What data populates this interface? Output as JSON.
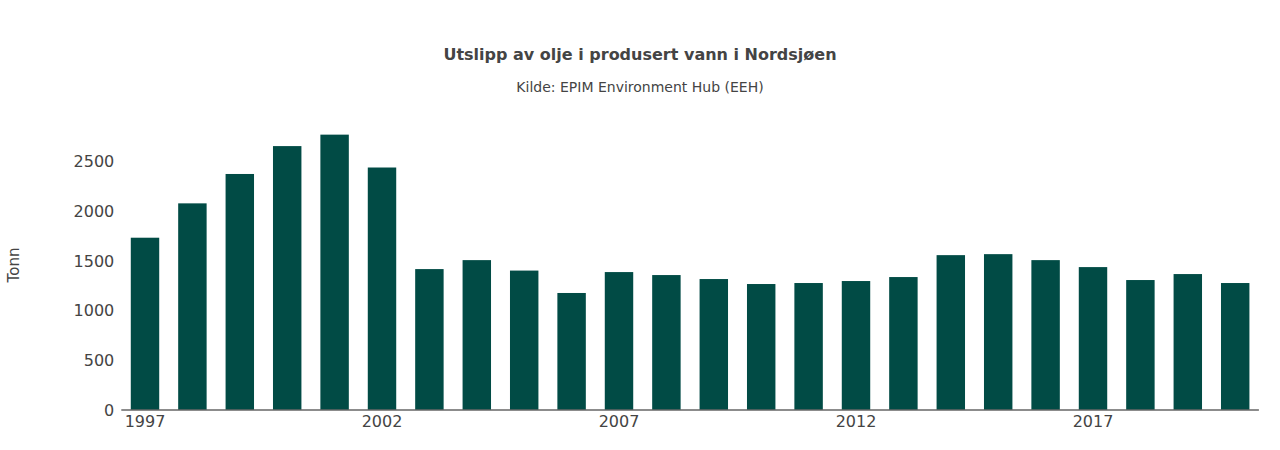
{
  "chart_data": {
    "type": "bar",
    "title": "Utslipp av olje i produsert vann i Nordsjøen",
    "subtitle": "Kilde: EPIM Environment Hub (EEH)",
    "y_label": "Tonn",
    "x": [
      1997,
      1998,
      1999,
      2000,
      2001,
      2002,
      2003,
      2004,
      2005,
      2006,
      2007,
      2008,
      2009,
      2010,
      2011,
      2012,
      2013,
      2014,
      2015,
      2016,
      2017,
      2018,
      2019,
      2020
    ],
    "values": [
      1730,
      2075,
      2370,
      2650,
      2765,
      2435,
      1415,
      1505,
      1400,
      1175,
      1385,
      1355,
      1315,
      1265,
      1275,
      1295,
      1335,
      1555,
      1565,
      1505,
      1435,
      1305,
      1365,
      1275
    ],
    "color": "#014b45",
    "xlim": [
      1996.5,
      2020.5
    ],
    "xticks": [
      1997,
      2002,
      2007,
      2012,
      2017
    ],
    "ylim": [
      0,
      2905
    ],
    "yticks": [
      0,
      500,
      1000,
      1500,
      2000,
      2500
    ],
    "grid": false
  }
}
